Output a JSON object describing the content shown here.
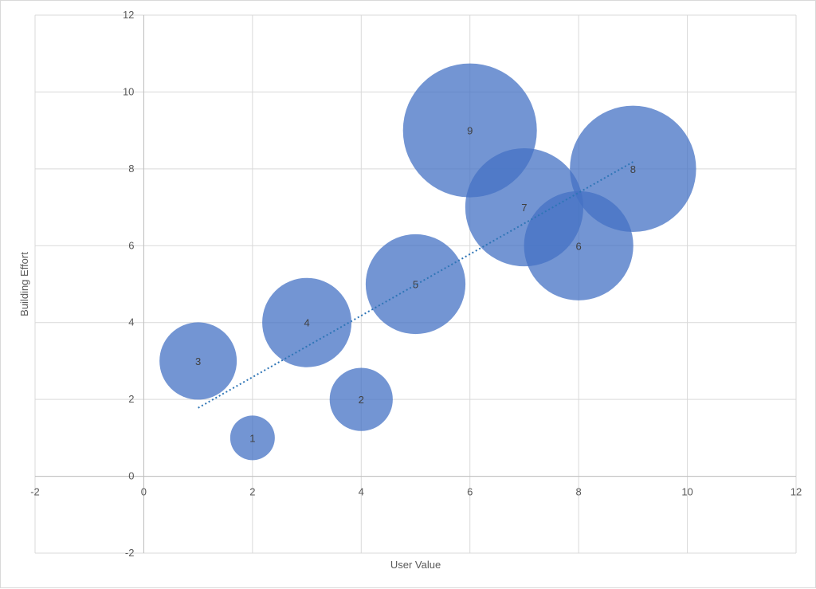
{
  "chart_data": {
    "type": "bubble",
    "xlabel": "User Value",
    "ylabel": "Building Effort",
    "xlim": [
      -2,
      12
    ],
    "ylim": [
      -2,
      12
    ],
    "x_ticks": [
      -2,
      0,
      2,
      4,
      6,
      8,
      10,
      12
    ],
    "y_ticks": [
      -2,
      0,
      2,
      4,
      6,
      8,
      10,
      12
    ],
    "grid": true,
    "legend": "none",
    "bubble_color": "#4472c4",
    "trendline": {
      "type": "linear",
      "style": "dotted",
      "color": "#2e75b6",
      "from": [
        1,
        1.78
      ],
      "to": [
        9,
        8.18
      ]
    },
    "points": [
      {
        "label": "1",
        "x": 2,
        "y": 1,
        "size": 1
      },
      {
        "label": "2",
        "x": 4,
        "y": 2,
        "size": 2
      },
      {
        "label": "3",
        "x": 1,
        "y": 3,
        "size": 3
      },
      {
        "label": "4",
        "x": 3,
        "y": 4,
        "size": 4
      },
      {
        "label": "5",
        "x": 5,
        "y": 5,
        "size": 5
      },
      {
        "label": "6",
        "x": 8,
        "y": 6,
        "size": 6
      },
      {
        "label": "7",
        "x": 7,
        "y": 7,
        "size": 7
      },
      {
        "label": "8",
        "x": 9,
        "y": 8,
        "size": 8
      },
      {
        "label": "9",
        "x": 6,
        "y": 9,
        "size": 9
      }
    ]
  }
}
